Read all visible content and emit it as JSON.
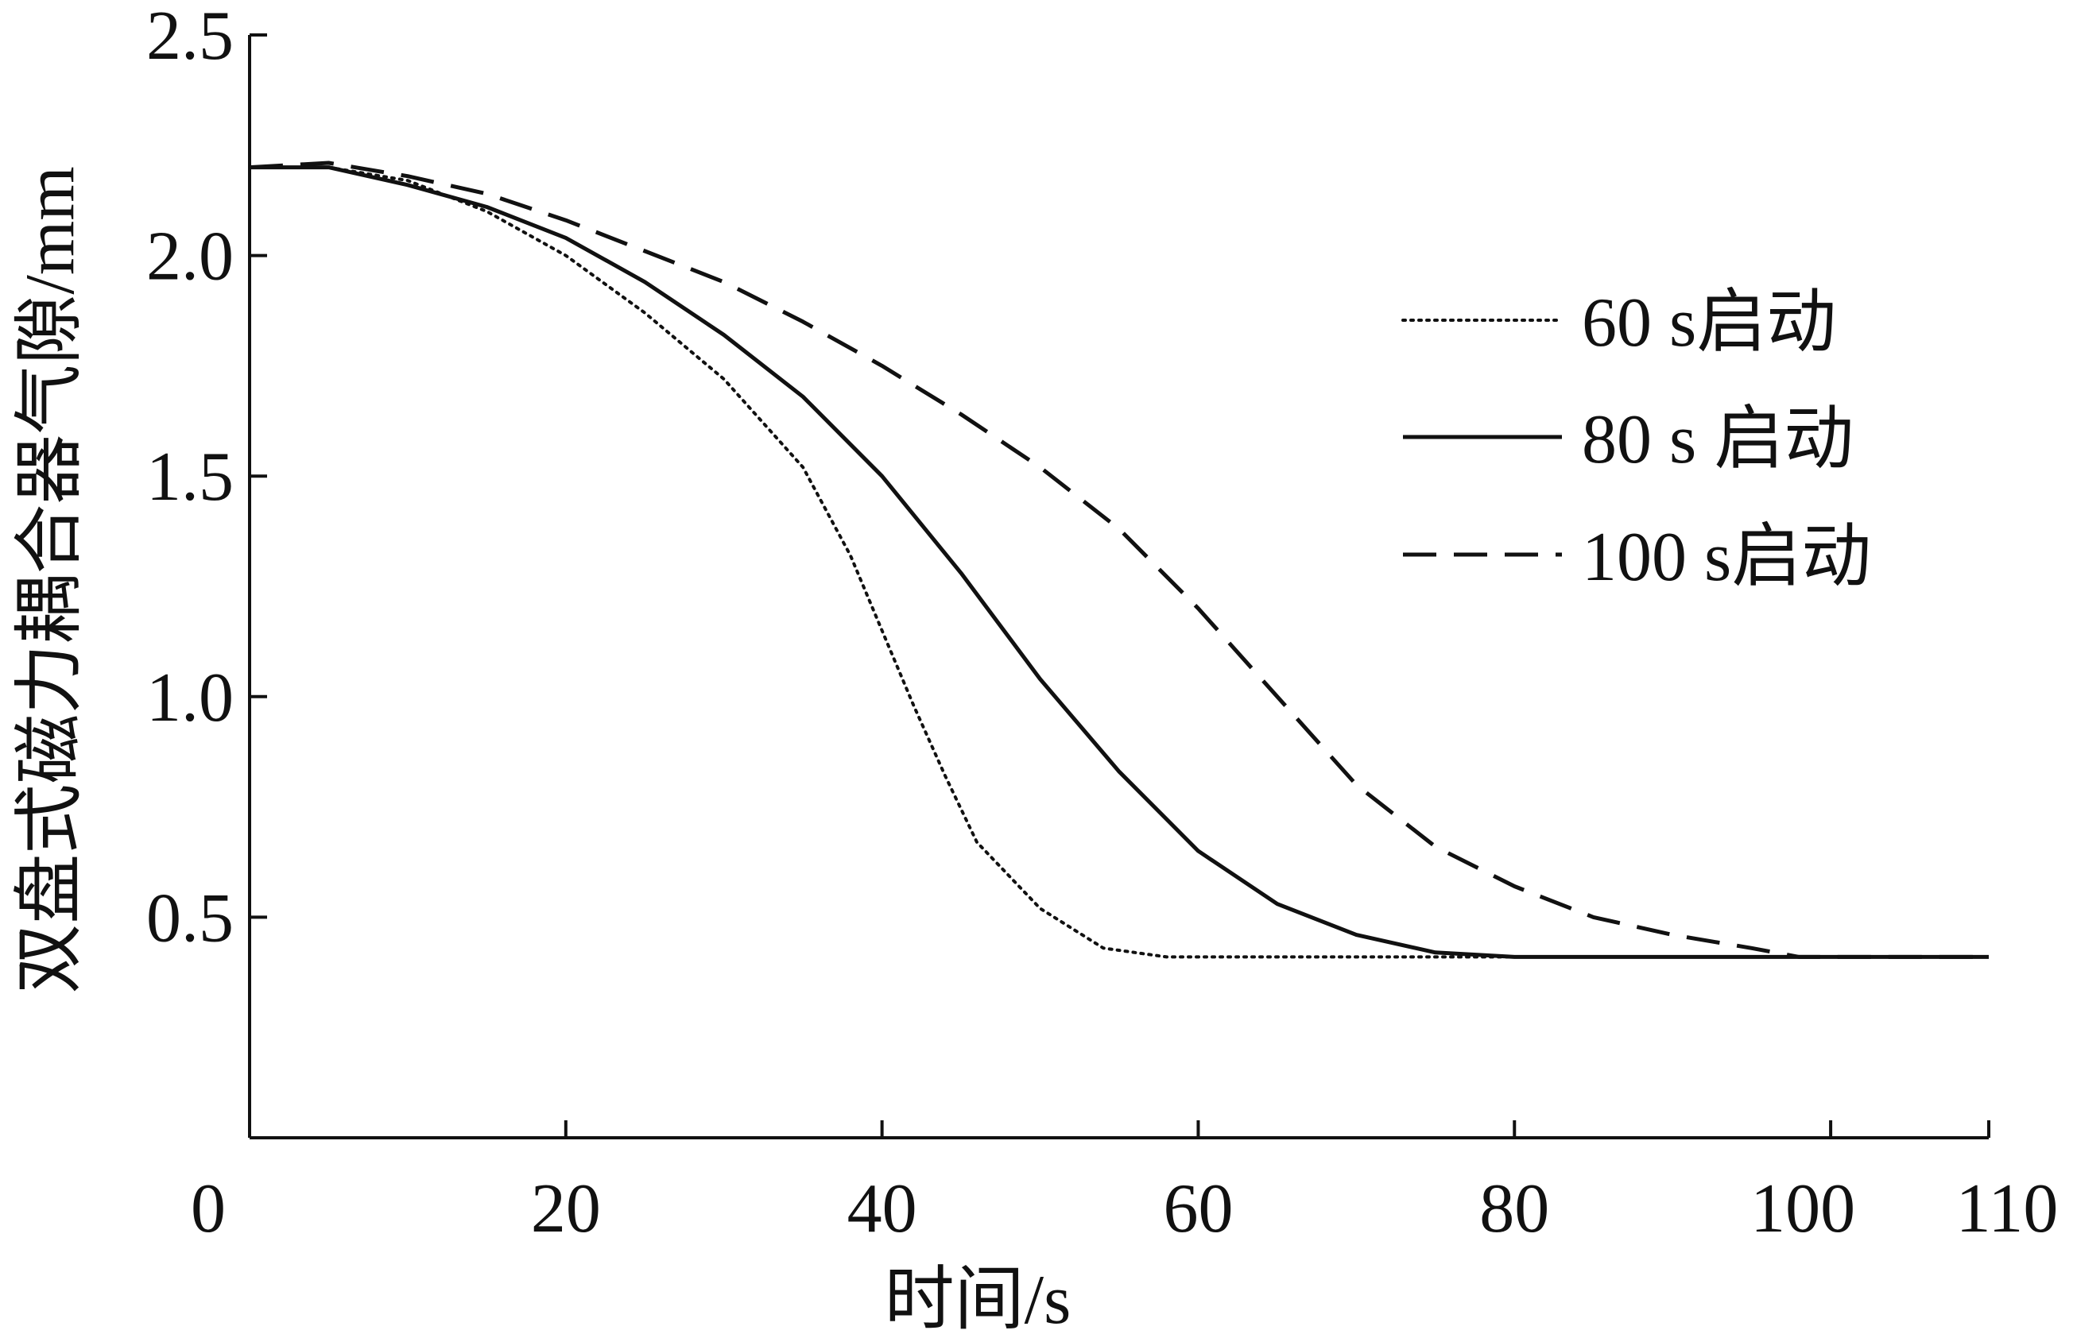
{
  "chart_data": {
    "type": "line",
    "title": "",
    "xlabel": "时间/s",
    "ylabel": "双盘式磁力耦合器气隙/mm",
    "xlim": [
      0,
      110
    ],
    "ylim": [
      0.0,
      2.5
    ],
    "xticks": [
      0,
      20,
      40,
      60,
      80,
      100,
      110
    ],
    "xtick_labels": [
      "0",
      "20",
      "40",
      "60",
      "80",
      "100",
      "110"
    ],
    "yticks": [
      0.5,
      1.0,
      1.5,
      2.0,
      2.5
    ],
    "ytick_labels": [
      "0.5",
      "1.0",
      "1.5",
      "2.0",
      "2.5"
    ],
    "grid": false,
    "legend_position": "right",
    "series": [
      {
        "name": "60 s启动",
        "style": "dotted",
        "color": "#111111",
        "points": [
          [
            0,
            2.2
          ],
          [
            5,
            2.2
          ],
          [
            10,
            2.17
          ],
          [
            15,
            2.1
          ],
          [
            20,
            2.0
          ],
          [
            25,
            1.87
          ],
          [
            30,
            1.72
          ],
          [
            35,
            1.52
          ],
          [
            38,
            1.32
          ],
          [
            40,
            1.15
          ],
          [
            42,
            0.98
          ],
          [
            44,
            0.82
          ],
          [
            46,
            0.67
          ],
          [
            50,
            0.52
          ],
          [
            54,
            0.43
          ],
          [
            58,
            0.41
          ],
          [
            62,
            0.41
          ],
          [
            70,
            0.41
          ],
          [
            80,
            0.41
          ]
        ]
      },
      {
        "name": "80 s 启动",
        "style": "solid",
        "color": "#111111",
        "points": [
          [
            0,
            2.2
          ],
          [
            5,
            2.2
          ],
          [
            10,
            2.16
          ],
          [
            15,
            2.11
          ],
          [
            20,
            2.04
          ],
          [
            25,
            1.94
          ],
          [
            30,
            1.82
          ],
          [
            35,
            1.68
          ],
          [
            40,
            1.5
          ],
          [
            45,
            1.28
          ],
          [
            50,
            1.04
          ],
          [
            55,
            0.83
          ],
          [
            60,
            0.65
          ],
          [
            65,
            0.53
          ],
          [
            70,
            0.46
          ],
          [
            75,
            0.42
          ],
          [
            80,
            0.41
          ],
          [
            90,
            0.41
          ],
          [
            100,
            0.41
          ],
          [
            110,
            0.41
          ]
        ]
      },
      {
        "name": "100 s启动",
        "style": "dashed",
        "color": "#111111",
        "points": [
          [
            0,
            2.2
          ],
          [
            5,
            2.21
          ],
          [
            10,
            2.18
          ],
          [
            15,
            2.14
          ],
          [
            20,
            2.08
          ],
          [
            25,
            2.01
          ],
          [
            30,
            1.94
          ],
          [
            35,
            1.85
          ],
          [
            40,
            1.75
          ],
          [
            45,
            1.64
          ],
          [
            50,
            1.52
          ],
          [
            55,
            1.38
          ],
          [
            60,
            1.2
          ],
          [
            65,
            1.0
          ],
          [
            70,
            0.8
          ],
          [
            75,
            0.66
          ],
          [
            80,
            0.57
          ],
          [
            85,
            0.5
          ],
          [
            90,
            0.46
          ],
          [
            95,
            0.43
          ],
          [
            98,
            0.41
          ],
          [
            100,
            0.41
          ],
          [
            110,
            0.41
          ]
        ]
      }
    ]
  }
}
